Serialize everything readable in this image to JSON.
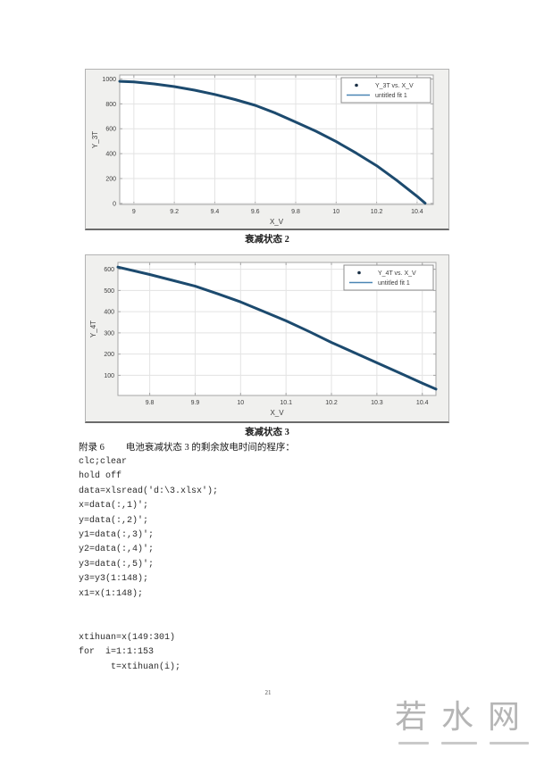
{
  "document": {
    "appendix_label": "附录 6",
    "appendix_title": "电池衰减状态 3 的剩余放电时间的程序：",
    "code_lines": [
      "clc;clear",
      "hold off",
      "data=xlsread('d:\\3.xlsx');",
      "x=data(:,1)';",
      "y=data(:,2)';",
      "y1=data(:,3)';",
      "y2=data(:,4)';",
      "y3=data(:,5)';",
      "y3=y3(1:148);",
      "x1=x(1:148);",
      "",
      "",
      "xtihuan=x(149:301)",
      "for  i=1:1:153",
      "      t=xtihuan(i);"
    ],
    "page_number": "21",
    "watermark_text": "若水网"
  },
  "colors": {
    "curve": "#1c4a6e",
    "marker": "#1a2f45",
    "fit_line": "#4a85b4",
    "grid": "#e3e3e3",
    "axis": "#a6a6a6",
    "figure_bg": "#f0f0ee"
  },
  "chart_data": [
    {
      "type": "scatter",
      "caption": "衰减状态 2",
      "xlabel": "X_V",
      "ylabel": "Y_3T",
      "xlim": [
        8.93,
        10.48
      ],
      "ylim": [
        -8,
        1032
      ],
      "xticks": [
        "9",
        "9.2",
        "9.4",
        "9.6",
        "9.8",
        "10",
        "10.2",
        "10.4"
      ],
      "yticks": [
        "0",
        "200",
        "400",
        "600",
        "800",
        "1000"
      ],
      "grid": true,
      "legend_position": "top-right",
      "legend": [
        {
          "marker": "dot",
          "label": "Y_3T vs. X_V"
        },
        {
          "marker": "line",
          "label": "untitled fit 1"
        }
      ],
      "curve": [
        [
          8.93,
          981
        ],
        [
          9.0,
          977
        ],
        [
          9.1,
          960
        ],
        [
          9.2,
          939
        ],
        [
          9.3,
          910
        ],
        [
          9.4,
          876
        ],
        [
          9.5,
          835
        ],
        [
          9.6,
          788
        ],
        [
          9.7,
          726
        ],
        [
          9.8,
          654
        ],
        [
          9.9,
          580
        ],
        [
          10.0,
          497
        ],
        [
          10.1,
          404
        ],
        [
          10.2,
          303
        ],
        [
          10.3,
          185
        ],
        [
          10.4,
          57
        ],
        [
          10.44,
          2
        ]
      ]
    },
    {
      "type": "scatter",
      "caption": "衰减状态 3",
      "xlabel": "X_V",
      "ylabel": "Y_4T",
      "xlim": [
        9.73,
        10.43
      ],
      "ylim": [
        5,
        632
      ],
      "xticks": [
        "9.8",
        "9.9",
        "10",
        "10.1",
        "10.2",
        "10.3",
        "10.4"
      ],
      "yticks": [
        "100",
        "200",
        "300",
        "400",
        "500",
        "600"
      ],
      "grid": true,
      "legend_position": "top-right",
      "legend": [
        {
          "marker": "dot",
          "label": "Y_4T vs. X_V"
        },
        {
          "marker": "line",
          "label": "untitled fit 1"
        }
      ],
      "curve": [
        [
          9.73,
          610
        ],
        [
          9.8,
          575
        ],
        [
          9.85,
          548
        ],
        [
          9.9,
          520
        ],
        [
          9.95,
          484
        ],
        [
          10.0,
          446
        ],
        [
          10.05,
          402
        ],
        [
          10.1,
          357
        ],
        [
          10.15,
          307
        ],
        [
          10.2,
          255
        ],
        [
          10.25,
          207
        ],
        [
          10.3,
          159
        ],
        [
          10.35,
          111
        ],
        [
          10.4,
          63
        ],
        [
          10.43,
          35
        ]
      ]
    }
  ]
}
